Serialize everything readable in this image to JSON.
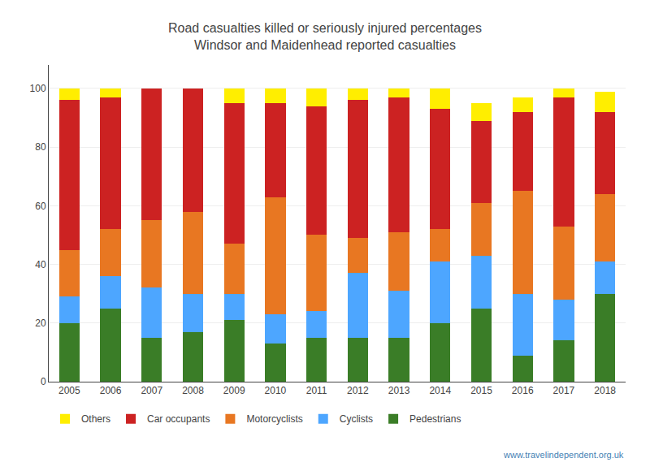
{
  "chart_data": {
    "type": "bar",
    "stacked": true,
    "title": "Road casualties killed or seriously injured percentages",
    "subtitle": "Windsor and Maidenhead reported casualties",
    "categories": [
      "2005",
      "2006",
      "2007",
      "2008",
      "2009",
      "2010",
      "2011",
      "2012",
      "2013",
      "2014",
      "2015",
      "2016",
      "2017",
      "2018"
    ],
    "series": [
      {
        "name": "Pedestrians",
        "color": "#3a7d27",
        "values": [
          20,
          25,
          15,
          17,
          21,
          13,
          15,
          15,
          15,
          20,
          25,
          9,
          14,
          30
        ]
      },
      {
        "name": "Cyclists",
        "color": "#4da6ff",
        "values": [
          9,
          11,
          17,
          13,
          9,
          10,
          9,
          22,
          16,
          21,
          18,
          21,
          14,
          11
        ]
      },
      {
        "name": "Motorcyclists",
        "color": "#e87722",
        "values": [
          16,
          16,
          23,
          28,
          17,
          40,
          26,
          12,
          20,
          11,
          18,
          35,
          25,
          23
        ]
      },
      {
        "name": "Car occupants",
        "color": "#cc2222",
        "values": [
          51,
          45,
          45,
          42,
          48,
          32,
          44,
          47,
          46,
          41,
          28,
          27,
          44,
          28
        ]
      },
      {
        "name": "Others",
        "color": "#ffee00",
        "values": [
          4,
          3,
          0,
          0,
          5,
          5,
          6,
          4,
          3,
          7,
          6,
          5,
          3,
          7
        ]
      }
    ],
    "ylim": [
      0,
      108
    ],
    "yticks": [
      0,
      20,
      40,
      60,
      80,
      100
    ],
    "grid": true,
    "legend": "bottom",
    "annotations": [
      "www.travelindependent.org.uk"
    ]
  }
}
